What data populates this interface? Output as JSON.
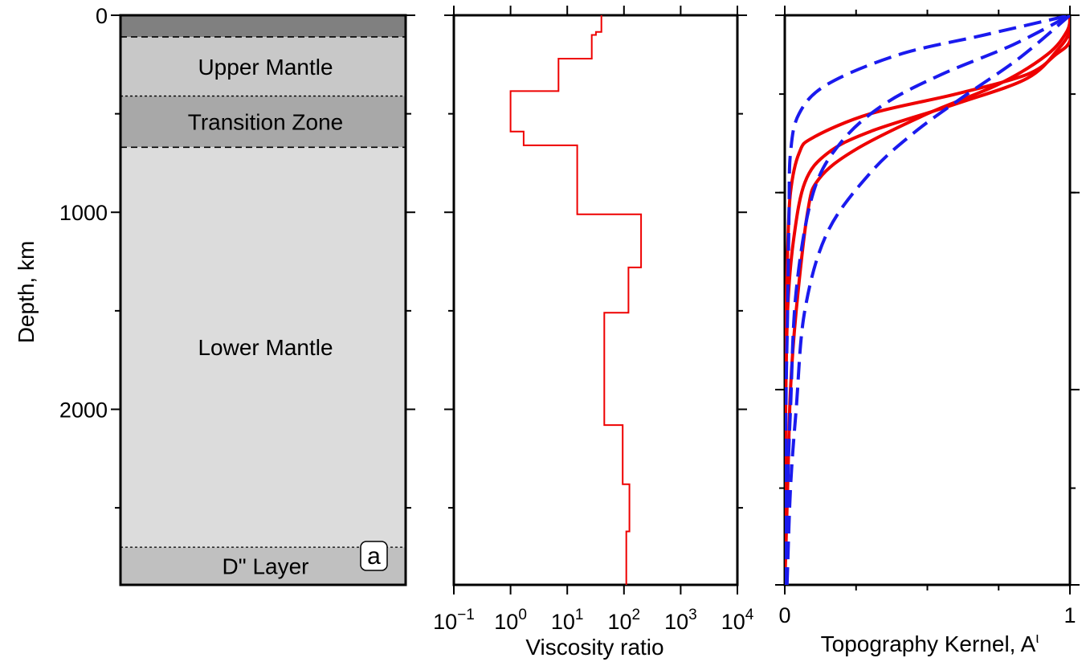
{
  "chart_data": [
    {
      "type": "area",
      "panel_label": "a",
      "ylabel": "Depth, km",
      "ylim": [
        0,
        2891
      ],
      "yticks": [
        0,
        1000,
        2000
      ],
      "y_minor_ticks": [
        500,
        1500,
        2500
      ],
      "layers": [
        {
          "name": "",
          "top": 0,
          "bottom": 110,
          "color": "#808080"
        },
        {
          "name": "Upper Mantle",
          "top": 110,
          "bottom": 410,
          "color": "#c8c8c8"
        },
        {
          "name": "Transition Zone",
          "top": 410,
          "bottom": 670,
          "color": "#a8a8a8"
        },
        {
          "name": "Lower Mantle",
          "top": 670,
          "bottom": 2700,
          "color": "#dcdcdc"
        },
        {
          "name": "D\" Layer",
          "top": 2700,
          "bottom": 2891,
          "color": "#c0c0c0"
        }
      ],
      "boundaries": [
        {
          "depth": 110,
          "style": "dashed"
        },
        {
          "depth": 410,
          "style": "dotted"
        },
        {
          "depth": 670,
          "style": "dashed"
        },
        {
          "depth": 2700,
          "style": "dotted"
        }
      ]
    },
    {
      "type": "line",
      "xlabel": "Viscosity ratio",
      "xscale": "log",
      "xlim_exponent": [
        -1,
        4
      ],
      "xticks": [
        {
          "base": "10",
          "exp": "−1"
        },
        {
          "base": "10",
          "exp": "0"
        },
        {
          "base": "10",
          "exp": "1"
        },
        {
          "base": "10",
          "exp": "2"
        },
        {
          "base": "10",
          "exp": "3"
        },
        {
          "base": "10",
          "exp": "4"
        }
      ],
      "series": [
        {
          "color": "#ee0000",
          "points": [
            [
              40,
              0
            ],
            [
              40,
              85
            ],
            [
              32,
              85
            ],
            [
              32,
              100
            ],
            [
              27,
              100
            ],
            [
              27,
              220
            ],
            [
              7,
              220
            ],
            [
              7,
              385
            ],
            [
              1,
              385
            ],
            [
              1,
              590
            ],
            [
              1.7,
              590
            ],
            [
              1.7,
              660
            ],
            [
              15,
              660
            ],
            [
              15,
              1010
            ],
            [
              200,
              1010
            ],
            [
              200,
              1280
            ],
            [
              120,
              1280
            ],
            [
              120,
              1510
            ],
            [
              45,
              1510
            ],
            [
              45,
              2080
            ],
            [
              95,
              2080
            ],
            [
              95,
              2380
            ],
            [
              125,
              2380
            ],
            [
              125,
              2620
            ],
            [
              110,
              2620
            ],
            [
              110,
              2891
            ]
          ]
        }
      ]
    },
    {
      "type": "line",
      "xlabel": "Topography Kernel, A",
      "xlabel_sup": "ι",
      "xlim": [
        0,
        1
      ],
      "xticks": [
        "0",
        "1"
      ],
      "x_minor_ticks": [
        0.25,
        0.5,
        0.75
      ],
      "y_minor_ticks": [
        400,
        900,
        1900,
        2400
      ],
      "series": [
        {
          "color": "#ee0000",
          "style": "solid",
          "points": [
            [
              0,
              2891
            ],
            [
              0.002,
              2000
            ],
            [
              0.005,
              1500
            ],
            [
              0.01,
              1200
            ],
            [
              0.02,
              900
            ],
            [
              0.05,
              700
            ],
            [
              0.1,
              620
            ],
            [
              0.3,
              500
            ],
            [
              0.6,
              400
            ],
            [
              0.85,
              300
            ],
            [
              0.95,
              200
            ],
            [
              1,
              130
            ],
            [
              1,
              0
            ]
          ]
        },
        {
          "color": "#ee0000",
          "style": "solid",
          "points": [
            [
              0,
              2891
            ],
            [
              0.003,
              2000
            ],
            [
              0.01,
              1500
            ],
            [
              0.03,
              1150
            ],
            [
              0.07,
              850
            ],
            [
              0.15,
              700
            ],
            [
              0.3,
              590
            ],
            [
              0.6,
              450
            ],
            [
              0.85,
              320
            ],
            [
              0.96,
              170
            ],
            [
              1,
              80
            ],
            [
              1,
              0
            ]
          ]
        },
        {
          "color": "#ee0000",
          "style": "solid",
          "points": [
            [
              0,
              2891
            ],
            [
              0.01,
              2400
            ],
            [
              0.02,
              1900
            ],
            [
              0.04,
              1500
            ],
            [
              0.08,
              1000
            ],
            [
              0.12,
              830
            ],
            [
              0.25,
              680
            ],
            [
              0.5,
              500
            ],
            [
              0.75,
              350
            ],
            [
              0.92,
              200
            ],
            [
              0.99,
              80
            ],
            [
              1,
              0
            ]
          ]
        },
        {
          "color": "#1a1aee",
          "style": "dashed",
          "points": [
            [
              0.002,
              2891
            ],
            [
              0.004,
              2000
            ],
            [
              0.01,
              1500
            ],
            [
              0.015,
              1000
            ],
            [
              0.02,
              700
            ],
            [
              0.05,
              500
            ],
            [
              0.15,
              350
            ],
            [
              0.4,
              200
            ],
            [
              0.7,
              100
            ],
            [
              1,
              0
            ]
          ]
        },
        {
          "color": "#1a1aee",
          "style": "dashed",
          "points": [
            [
              0.005,
              2891
            ],
            [
              0.01,
              2400
            ],
            [
              0.02,
              2000
            ],
            [
              0.04,
              1400
            ],
            [
              0.1,
              900
            ],
            [
              0.2,
              640
            ],
            [
              0.35,
              450
            ],
            [
              0.55,
              300
            ],
            [
              0.8,
              150
            ],
            [
              1,
              0
            ]
          ]
        },
        {
          "color": "#1a1aee",
          "style": "dashed",
          "points": [
            [
              0.008,
              2891
            ],
            [
              0.02,
              2400
            ],
            [
              0.04,
              2000
            ],
            [
              0.07,
              1500
            ],
            [
              0.15,
              1100
            ],
            [
              0.3,
              800
            ],
            [
              0.45,
              600
            ],
            [
              0.62,
              420
            ],
            [
              0.82,
              220
            ],
            [
              1,
              0
            ]
          ]
        }
      ]
    }
  ]
}
